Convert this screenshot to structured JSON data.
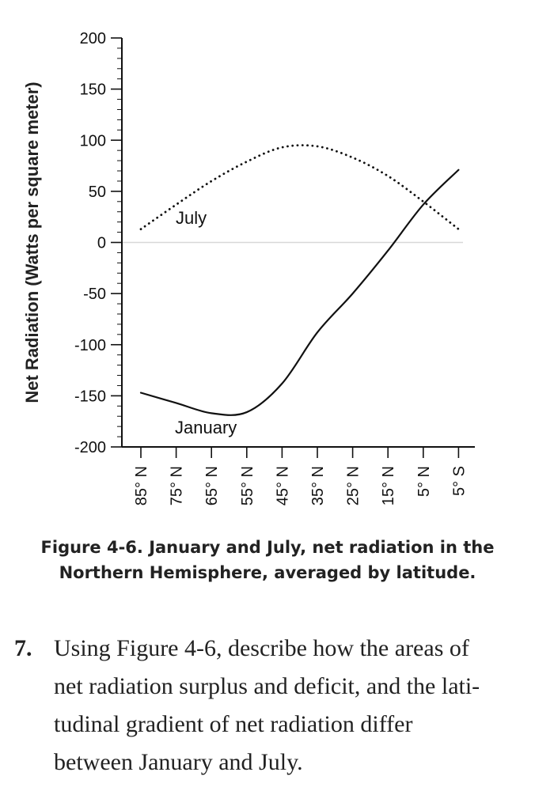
{
  "chart_data": {
    "type": "line",
    "ylabel": "Net Radiation (Watts per square meter)",
    "xlabel": "",
    "ylim": [
      -200,
      200
    ],
    "yticks": [
      -200,
      -150,
      -100,
      -50,
      0,
      50,
      100,
      150,
      200
    ],
    "x_categories": [
      "85° N",
      "75° N",
      "65° N",
      "55° N",
      "45° N",
      "35° N",
      "25° N",
      "15° N",
      "5° N",
      "5° S"
    ],
    "series": [
      {
        "name": "July",
        "style": "dotted",
        "values": [
          13,
          37,
          60,
          79,
          93,
          94,
          83,
          65,
          40,
          13
        ]
      },
      {
        "name": "January",
        "style": "solid",
        "values": [
          -147,
          -157,
          -167,
          -166,
          -138,
          -88,
          -50,
          -8,
          37,
          71
        ]
      }
    ],
    "reference_line": 0
  },
  "figure": {
    "caption_line1": "Figure 4-6.  January and July, net radiation in the",
    "caption_line2": "Northern Hemisphere, averaged by latitude."
  },
  "question": {
    "number": "7.",
    "lines": [
      "Using Figure 4-6, describe how the areas of",
      "net radiation surplus and deficit, and the lati-",
      "tudinal gradient of net radiation differ",
      "between January and July."
    ]
  },
  "colors": {
    "ink": "#111111",
    "zero_line": "#d8d8d8"
  }
}
